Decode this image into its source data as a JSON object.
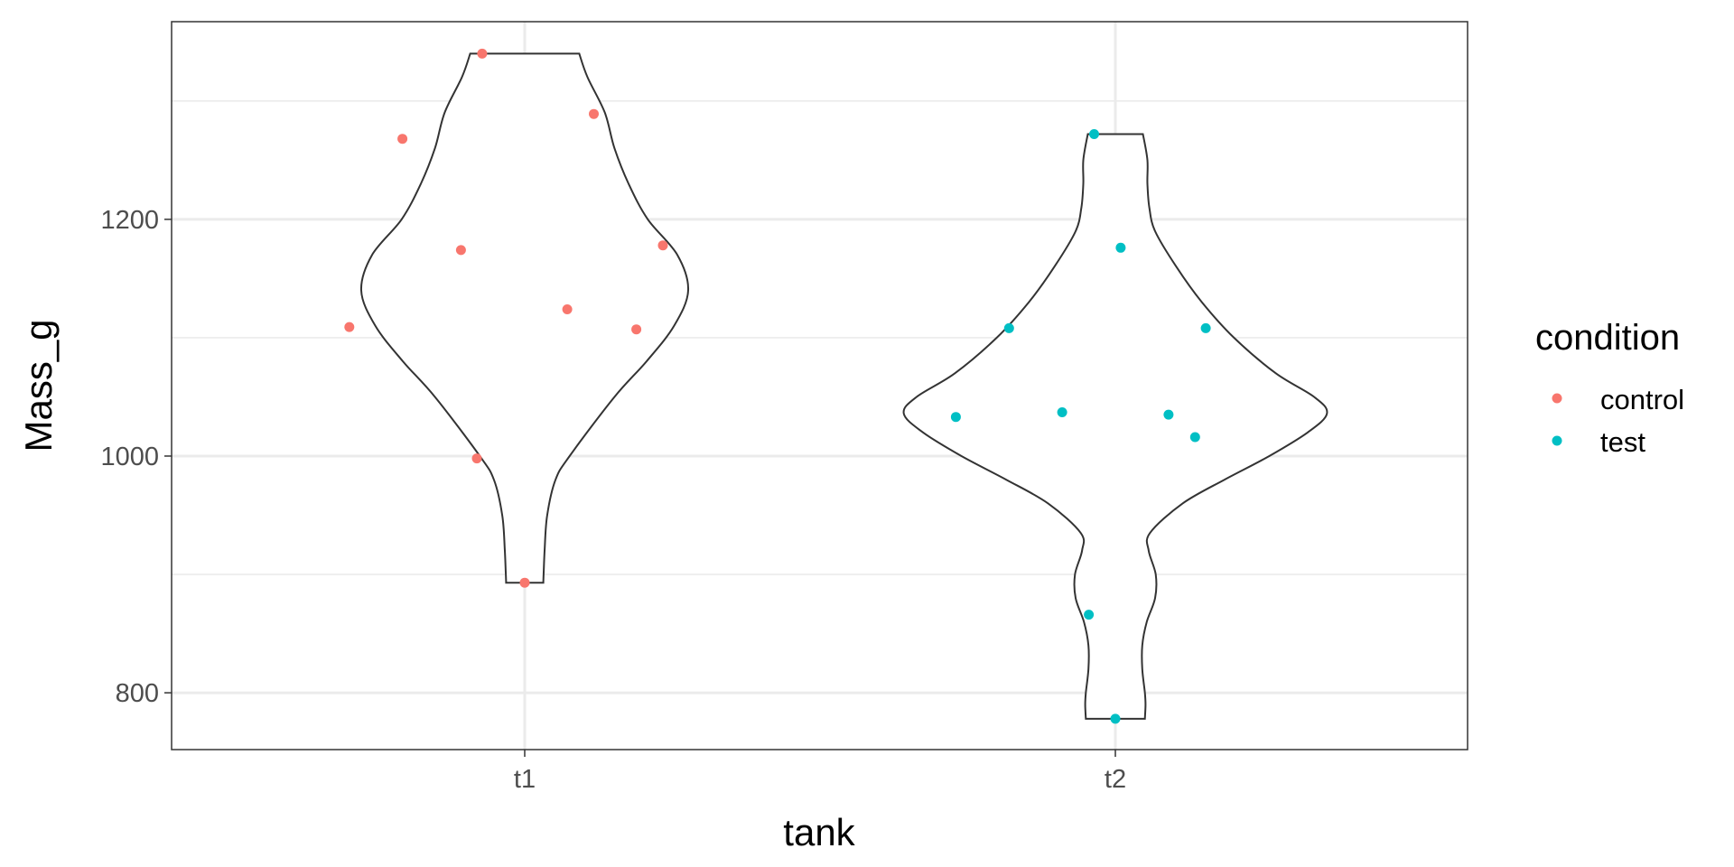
{
  "chart_data": {
    "type": "violin",
    "xlabel": "tank",
    "ylabel": "Mass_g",
    "categories": [
      "t1",
      "t2"
    ],
    "yticks": [
      800,
      1000,
      1200
    ],
    "ylim": [
      752,
      1367
    ],
    "grid": true,
    "legend": {
      "title": "condition",
      "placement": "right",
      "entries": [
        {
          "label": "control",
          "color": "#F8766D"
        },
        {
          "label": "test",
          "color": "#00BFC4"
        }
      ]
    },
    "violins": [
      {
        "category": "t1",
        "condition": "control",
        "profile": [
          [
            893,
            0.29
          ],
          [
            900,
            0.295
          ],
          [
            920,
            0.31
          ],
          [
            950,
            0.35
          ],
          [
            980,
            0.48
          ],
          [
            1000,
            0.7
          ],
          [
            1050,
            1.4
          ],
          [
            1080,
            1.9
          ],
          [
            1110,
            2.33
          ],
          [
            1140,
            2.55
          ],
          [
            1170,
            2.38
          ],
          [
            1200,
            1.92
          ],
          [
            1230,
            1.62
          ],
          [
            1260,
            1.4
          ],
          [
            1290,
            1.25
          ],
          [
            1320,
            0.98
          ],
          [
            1340,
            0.85
          ]
        ],
        "points": [
          {
            "x": 0.42,
            "y": 1340
          },
          {
            "x": 0.63,
            "y": 1289
          },
          {
            "x": 0.27,
            "y": 1268
          },
          {
            "x": 0.38,
            "y": 1174
          },
          {
            "x": 0.76,
            "y": 1178
          },
          {
            "x": 0.58,
            "y": 1124
          },
          {
            "x": 0.17,
            "y": 1109
          },
          {
            "x": 0.71,
            "y": 1107
          },
          {
            "x": 0.41,
            "y": 998
          },
          {
            "x": 0.5,
            "y": 893
          }
        ]
      },
      {
        "category": "t2",
        "condition": "test",
        "profile": [
          [
            778,
            0.46
          ],
          [
            790,
            0.47
          ],
          [
            800,
            0.46
          ],
          [
            820,
            0.42
          ],
          [
            840,
            0.42
          ],
          [
            860,
            0.49
          ],
          [
            880,
            0.62
          ],
          [
            900,
            0.63
          ],
          [
            920,
            0.52
          ],
          [
            935,
            0.54
          ],
          [
            960,
            1.05
          ],
          [
            980,
            1.7
          ],
          [
            1000,
            2.4
          ],
          [
            1020,
            3.0
          ],
          [
            1036,
            3.3
          ],
          [
            1050,
            3.1
          ],
          [
            1070,
            2.5
          ],
          [
            1100,
            1.85
          ],
          [
            1130,
            1.35
          ],
          [
            1160,
            0.95
          ],
          [
            1190,
            0.62
          ],
          [
            1210,
            0.53
          ],
          [
            1230,
            0.5
          ],
          [
            1250,
            0.5
          ],
          [
            1272,
            0.43
          ]
        ],
        "points": [
          {
            "x": 0.46,
            "y": 1272
          },
          {
            "x": 0.51,
            "y": 1176
          },
          {
            "x": 0.3,
            "y": 1108
          },
          {
            "x": 0.67,
            "y": 1108
          },
          {
            "x": 0.2,
            "y": 1033
          },
          {
            "x": 0.4,
            "y": 1037
          },
          {
            "x": 0.6,
            "y": 1035
          },
          {
            "x": 0.65,
            "y": 1016
          },
          {
            "x": 0.45,
            "y": 866
          },
          {
            "x": 0.5,
            "y": 778
          }
        ]
      }
    ]
  }
}
